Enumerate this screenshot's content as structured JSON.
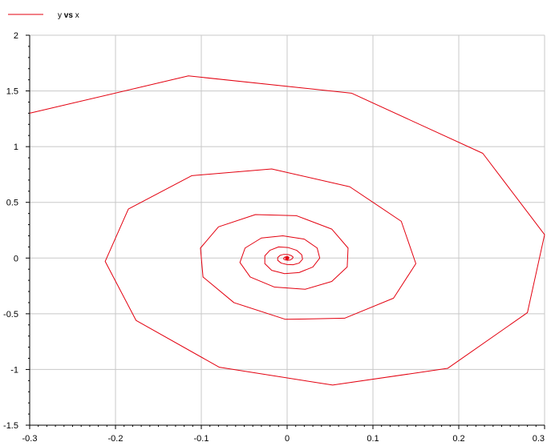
{
  "chart_data": {
    "type": "line",
    "legend": {
      "placement": "top-left"
    },
    "series": [
      {
        "name": "y",
        "name_vs": "vs",
        "name_x": "x",
        "color": "#e3000f",
        "points": [
          [
            -0.3,
            1.3
          ],
          [
            -0.115,
            1.635
          ],
          [
            0.075,
            1.48
          ],
          [
            0.228,
            0.94
          ],
          [
            0.3,
            0.21
          ],
          [
            0.28,
            -0.49
          ],
          [
            0.187,
            -0.99
          ],
          [
            0.053,
            -1.14
          ],
          [
            -0.079,
            -0.98
          ],
          [
            -0.176,
            -0.56
          ],
          [
            -0.212,
            -0.03
          ],
          [
            -0.185,
            0.44
          ],
          [
            -0.111,
            0.74
          ],
          [
            -0.018,
            0.8
          ],
          [
            0.073,
            0.64
          ],
          [
            0.133,
            0.33
          ],
          [
            0.15,
            -0.05
          ],
          [
            0.124,
            -0.36
          ],
          [
            0.067,
            -0.54
          ],
          [
            -0.002,
            -0.55
          ],
          [
            -0.062,
            -0.4
          ],
          [
            -0.098,
            -0.17
          ],
          [
            -0.101,
            0.09
          ],
          [
            -0.08,
            0.28
          ],
          [
            -0.037,
            0.39
          ],
          [
            0.011,
            0.38
          ],
          [
            0.052,
            0.26
          ],
          [
            0.071,
            0.09
          ],
          [
            0.07,
            -0.08
          ],
          [
            0.052,
            -0.21
          ],
          [
            0.021,
            -0.28
          ],
          [
            -0.015,
            -0.26
          ],
          [
            -0.043,
            -0.17
          ],
          [
            -0.055,
            -0.04
          ],
          [
            -0.049,
            0.09
          ],
          [
            -0.03,
            0.18
          ],
          [
            -0.005,
            0.2
          ],
          [
            0.02,
            0.17
          ],
          [
            0.035,
            0.09
          ],
          [
            0.038,
            0.0
          ],
          [
            0.03,
            -0.08
          ],
          [
            0.014,
            -0.13
          ],
          [
            -0.003,
            -0.14
          ],
          [
            -0.018,
            -0.11
          ],
          [
            -0.026,
            -0.05
          ],
          [
            -0.026,
            0.02
          ],
          [
            -0.02,
            0.07
          ],
          [
            -0.01,
            0.1
          ],
          [
            0.001,
            0.095
          ],
          [
            0.011,
            0.07
          ],
          [
            0.017,
            0.03
          ],
          [
            0.018,
            -0.01
          ],
          [
            0.014,
            -0.045
          ],
          [
            0.007,
            -0.06
          ],
          [
            0.0,
            -0.058
          ],
          [
            -0.007,
            -0.045
          ],
          [
            -0.011,
            -0.02
          ],
          [
            -0.011,
            0.005
          ],
          [
            -0.008,
            0.025
          ],
          [
            -0.004,
            0.033
          ],
          [
            0.001,
            0.032
          ],
          [
            0.005,
            0.022
          ],
          [
            0.007,
            0.008
          ],
          [
            0.006,
            -0.006
          ],
          [
            0.004,
            -0.016
          ],
          [
            0.001,
            -0.02
          ],
          [
            -0.002,
            -0.017
          ],
          [
            -0.004,
            -0.01
          ],
          [
            -0.004,
            0.0
          ],
          [
            -0.003,
            0.008
          ],
          [
            -0.001,
            0.012
          ],
          [
            0.001,
            0.011
          ],
          [
            0.002,
            0.006
          ],
          [
            0.002,
            0.0
          ],
          [
            0.001,
            -0.004
          ],
          [
            0.0,
            -0.005
          ],
          [
            -0.001,
            -0.003
          ],
          [
            0.0,
            0.0
          ]
        ]
      }
    ],
    "xlim": [
      -0.3,
      0.3
    ],
    "ylim": [
      -1.5,
      2
    ],
    "x_ticks": [
      {
        "value": -0.3,
        "label": "-0.3"
      },
      {
        "value": -0.2,
        "label": "-0.2"
      },
      {
        "value": -0.1,
        "label": "-0.1"
      },
      {
        "value": 0,
        "label": "0"
      },
      {
        "value": 0.1,
        "label": "0.1"
      },
      {
        "value": 0.2,
        "label": "0.2"
      },
      {
        "value": 0.3,
        "label": "0.3"
      }
    ],
    "y_ticks": [
      {
        "value": -1.5,
        "label": "-1.5"
      },
      {
        "value": -1,
        "label": "-1"
      },
      {
        "value": -0.5,
        "label": "-0.5"
      },
      {
        "value": 0,
        "label": "0"
      },
      {
        "value": 0.5,
        "label": "0.5"
      },
      {
        "value": 1,
        "label": "1"
      },
      {
        "value": 1.5,
        "label": "1.5"
      },
      {
        "value": 2,
        "label": "2"
      }
    ],
    "grid": true
  }
}
